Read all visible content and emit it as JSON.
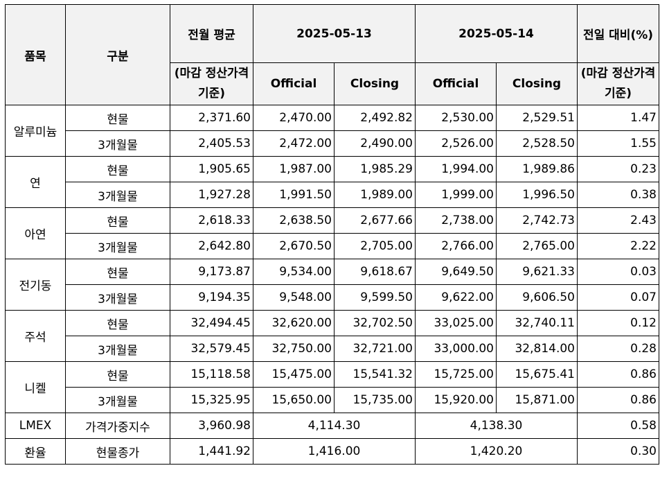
{
  "header": {
    "item": "품목",
    "category": "구분",
    "prev_month_avg": "전월 평균",
    "prev_month_avg_sub": "(마감 정산가격 기준)",
    "date1": "2025-05-13",
    "date2": "2025-05-14",
    "change": "전일 대비(%)",
    "change_sub": "(마감 정산가격 기준)",
    "official": "Official",
    "closing": "Closing"
  },
  "metals": [
    {
      "name": "알루미늄",
      "rows": [
        {
          "type": "현물",
          "avg": "2,371.60",
          "d1_official": "2,470.00",
          "d1_closing": "2,492.82",
          "d2_official": "2,530.00",
          "d2_closing": "2,529.51",
          "change": "1.47"
        },
        {
          "type": "3개월물",
          "avg": "2,405.53",
          "d1_official": "2,472.00",
          "d1_closing": "2,490.00",
          "d2_official": "2,526.00",
          "d2_closing": "2,528.50",
          "change": "1.55"
        }
      ]
    },
    {
      "name": "연",
      "rows": [
        {
          "type": "현물",
          "avg": "1,905.65",
          "d1_official": "1,987.00",
          "d1_closing": "1,985.29",
          "d2_official": "1,994.00",
          "d2_closing": "1,989.86",
          "change": "0.23"
        },
        {
          "type": "3개월물",
          "avg": "1,927.28",
          "d1_official": "1,991.50",
          "d1_closing": "1,989.00",
          "d2_official": "1,999.00",
          "d2_closing": "1,996.50",
          "change": "0.38"
        }
      ]
    },
    {
      "name": "아연",
      "rows": [
        {
          "type": "현물",
          "avg": "2,618.33",
          "d1_official": "2,638.50",
          "d1_closing": "2,677.66",
          "d2_official": "2,738.00",
          "d2_closing": "2,742.73",
          "change": "2.43"
        },
        {
          "type": "3개월물",
          "avg": "2,642.80",
          "d1_official": "2,670.50",
          "d1_closing": "2,705.00",
          "d2_official": "2,766.00",
          "d2_closing": "2,765.00",
          "change": "2.22"
        }
      ]
    },
    {
      "name": "전기동",
      "rows": [
        {
          "type": "현물",
          "avg": "9,173.87",
          "d1_official": "9,534.00",
          "d1_closing": "9,618.67",
          "d2_official": "9,649.50",
          "d2_closing": "9,621.33",
          "change": "0.03"
        },
        {
          "type": "3개월물",
          "avg": "9,194.35",
          "d1_official": "9,548.00",
          "d1_closing": "9,599.50",
          "d2_official": "9,622.00",
          "d2_closing": "9,606.50",
          "change": "0.07"
        }
      ]
    },
    {
      "name": "주석",
      "rows": [
        {
          "type": "현물",
          "avg": "32,494.45",
          "d1_official": "32,620.00",
          "d1_closing": "32,702.50",
          "d2_official": "33,025.00",
          "d2_closing": "32,740.11",
          "change": "0.12"
        },
        {
          "type": "3개월물",
          "avg": "32,579.45",
          "d1_official": "32,750.00",
          "d1_closing": "32,721.00",
          "d2_official": "33,000.00",
          "d2_closing": "32,814.00",
          "change": "0.28"
        }
      ]
    },
    {
      "name": "니켈",
      "rows": [
        {
          "type": "현물",
          "avg": "15,118.58",
          "d1_official": "15,475.00",
          "d1_closing": "15,541.32",
          "d2_official": "15,725.00",
          "d2_closing": "15,675.41",
          "change": "0.86"
        },
        {
          "type": "3개월물",
          "avg": "15,325.95",
          "d1_official": "15,650.00",
          "d1_closing": "15,735.00",
          "d2_official": "15,920.00",
          "d2_closing": "15,871.00",
          "change": "0.86"
        }
      ]
    }
  ],
  "lmex": {
    "name": "LMEX",
    "type": "가격가중지수",
    "avg": "3,960.98",
    "d1": "4,114.30",
    "d2": "4,138.30",
    "change": "0.58"
  },
  "fx": {
    "name": "환율",
    "type": "현물종가",
    "avg": "1,441.92",
    "d1": "1,416.00",
    "d2": "1,420.20",
    "change": "0.30"
  }
}
